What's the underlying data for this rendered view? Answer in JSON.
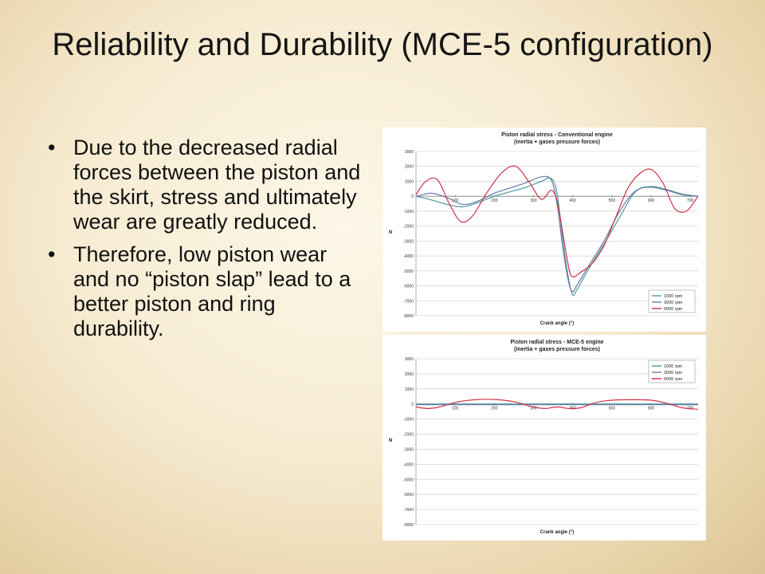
{
  "slide": {
    "title": "Reliability and Durability (MCE-5 configuration)",
    "bullets": [
      "Due to the decreased radial forces between the piston and the skirt, stress and ultimately wear are greatly reduced.",
      "Therefore, low piston wear and no “piston slap” lead to a better piston and ring durability."
    ],
    "bullet_symbol": "•"
  },
  "chart_data": [
    {
      "type": "line",
      "title": "Piston radial stress - Conventional engine",
      "subtitle": "(inertia + gases pressure forces)",
      "xlabel": "Crank angle (°)",
      "ylabel": "N",
      "xlim": [
        0,
        720
      ],
      "ylim": [
        -8000,
        3000
      ],
      "xticks": [
        100,
        200,
        300,
        400,
        500,
        600,
        700
      ],
      "yticks": [
        3000,
        2000,
        1000,
        0,
        -1000,
        -2000,
        -3000,
        -4000,
        -5000,
        -6000,
        -7000,
        -8000
      ],
      "grid": true,
      "legend": "bottom-right",
      "series": [
        {
          "name": "1000 rpm",
          "color": "#4a9a9a",
          "x": [
            0,
            40,
            80,
            120,
            160,
            200,
            240,
            280,
            320,
            345,
            360,
            375,
            390,
            400,
            410,
            440,
            480,
            520,
            560,
            600,
            640,
            680,
            720
          ],
          "y": [
            0,
            -250,
            -550,
            -700,
            -400,
            0,
            300,
            600,
            1000,
            1200,
            200,
            -3000,
            -5600,
            -6600,
            -6300,
            -4900,
            -3200,
            -1400,
            300,
            650,
            450,
            150,
            0
          ]
        },
        {
          "name": "3000 rpm",
          "color": "#6a7aa8",
          "x": [
            0,
            40,
            80,
            120,
            160,
            200,
            240,
            280,
            320,
            345,
            360,
            375,
            390,
            400,
            410,
            440,
            480,
            520,
            560,
            600,
            640,
            680,
            720
          ],
          "y": [
            0,
            200,
            -100,
            -550,
            -300,
            200,
            550,
            900,
            1300,
            1100,
            -500,
            -3500,
            -5800,
            -6400,
            -6000,
            -4700,
            -3000,
            -1000,
            350,
            600,
            400,
            100,
            0
          ]
        },
        {
          "name": "6000 rpm",
          "color": "#cc3344",
          "x": [
            0,
            25,
            55,
            85,
            115,
            145,
            180,
            220,
            255,
            290,
            320,
            345,
            360,
            375,
            390,
            400,
            420,
            450,
            480,
            510,
            540,
            570,
            600,
            630,
            660,
            690,
            720
          ],
          "y": [
            100,
            1000,
            1100,
            -500,
            -1700,
            -1300,
            200,
            1600,
            2000,
            900,
            -200,
            400,
            -300,
            -2500,
            -4800,
            -5400,
            -5100,
            -4500,
            -3300,
            -1400,
            500,
            1500,
            1800,
            900,
            -800,
            -1000,
            0
          ]
        }
      ]
    },
    {
      "type": "line",
      "title": "Piston radial stress - MCE-5 engine",
      "subtitle": "(inertia + gases pressure forces)",
      "xlabel": "Crank angle (°)",
      "ylabel": "N",
      "xlim": [
        0,
        720
      ],
      "ylim": [
        -8000,
        3000
      ],
      "xticks": [
        100,
        200,
        300,
        400,
        500,
        600,
        700
      ],
      "yticks": [
        3000,
        2000,
        1000,
        0,
        -1000,
        -2000,
        -3000,
        -4000,
        -5000,
        -6000,
        -7000,
        -8000
      ],
      "grid": true,
      "legend": "top-right",
      "series": [
        {
          "name": "1000 rpm",
          "color": "#4a9a9a",
          "x": [
            0,
            720
          ],
          "y": [
            0,
            0
          ]
        },
        {
          "name": "3000 rpm",
          "color": "#6a7aa8",
          "x": [
            0,
            720
          ],
          "y": [
            -50,
            -50
          ]
        },
        {
          "name": "6000 rpm",
          "color": "#cc3344",
          "x": [
            0,
            30,
            60,
            100,
            150,
            200,
            250,
            300,
            330,
            360,
            390,
            420,
            460,
            500,
            550,
            600,
            640,
            680,
            720
          ],
          "y": [
            -200,
            -300,
            -200,
            100,
            280,
            300,
            150,
            -200,
            -300,
            -200,
            -300,
            -250,
            100,
            250,
            280,
            250,
            50,
            -250,
            -350
          ]
        }
      ]
    }
  ]
}
